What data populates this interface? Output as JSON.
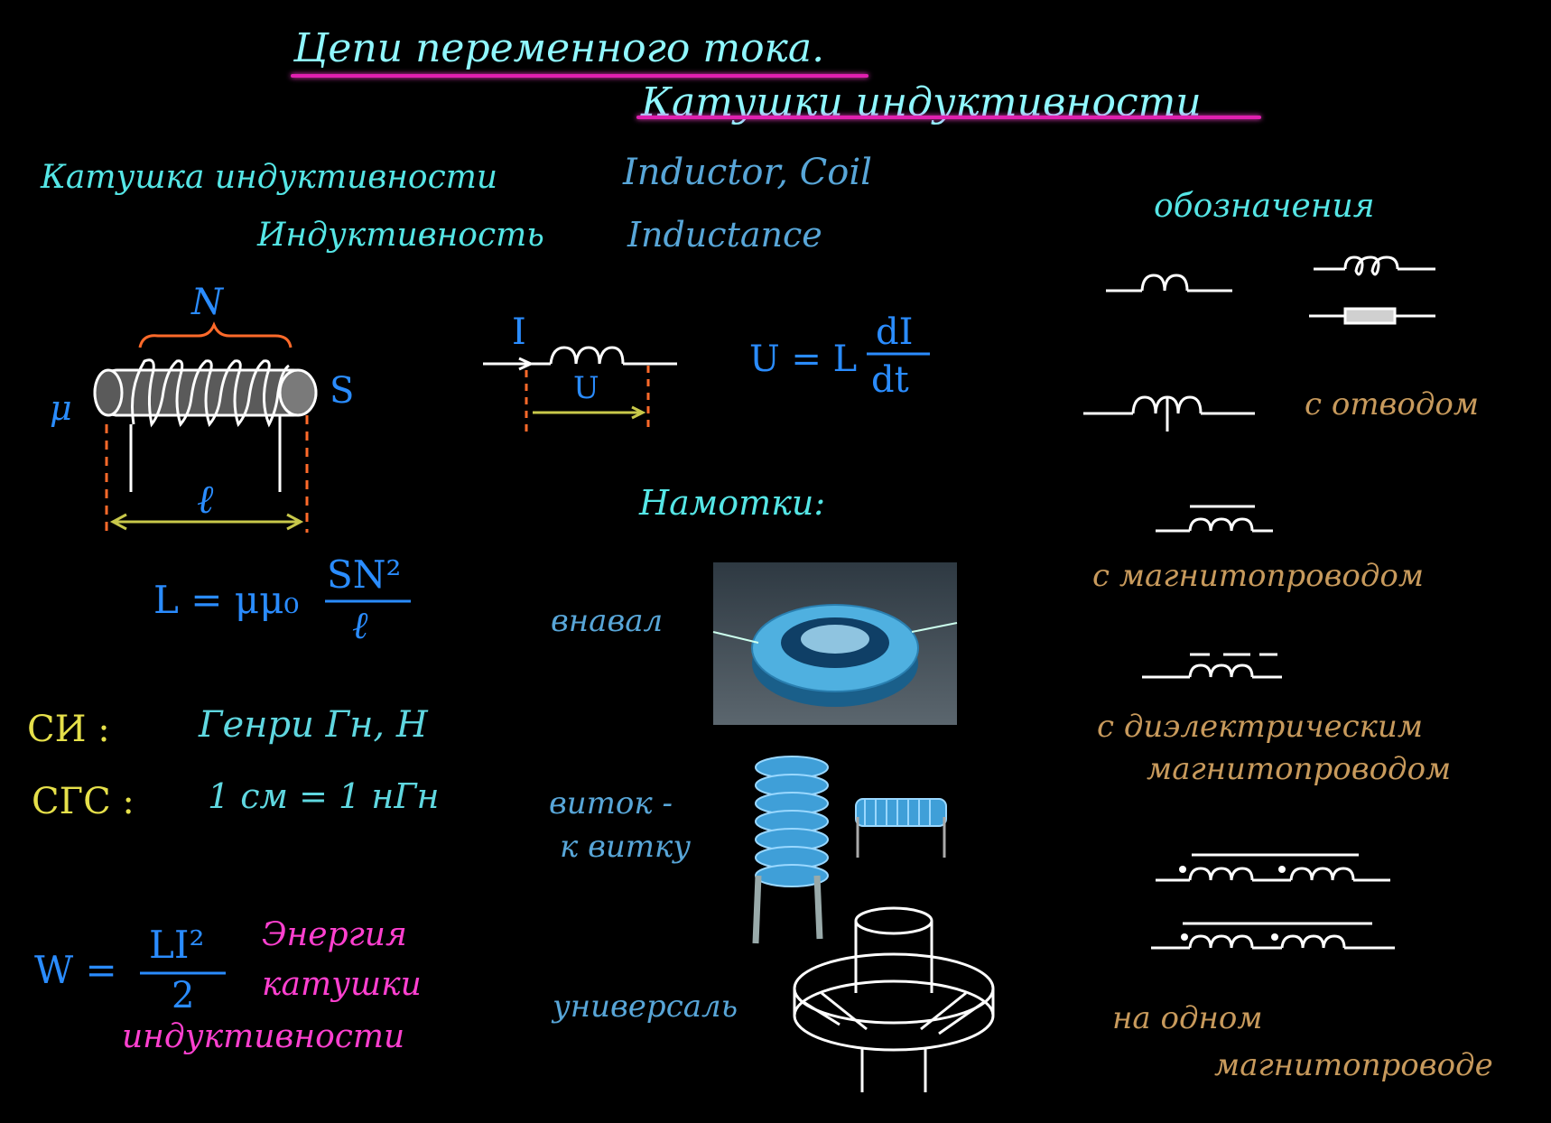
{
  "title": {
    "line1": "Цепи переменного тока.",
    "line2": "Катушки индуктивности"
  },
  "terms": {
    "coil_ru": "Катушка индуктивности",
    "coil_en": "Inductor, Coil",
    "inductance_ru": "Индуктивность",
    "inductance_en": "Inductance"
  },
  "solenoid": {
    "turns_label": "N",
    "mu_label": "μ",
    "area_label": "S",
    "length_label": "ℓ"
  },
  "circuit": {
    "current_label": "I",
    "voltage_label": "U",
    "formula_lhs": "U = L",
    "formula_num": "dI",
    "formula_den": "dt"
  },
  "inductance_formula": {
    "lhs": "L  =  μμ₀",
    "num": "SN²",
    "den": "ℓ"
  },
  "units": {
    "si_label": "СИ :",
    "si_value": "Генри   Гн, H",
    "cgs_label": "СГС :",
    "cgs_value": "1 см  =  1 нГн"
  },
  "energy": {
    "lhs": "W  =",
    "num": "LI²",
    "den": "2",
    "caption_line1": "Энергия",
    "caption_line2": "катушки",
    "caption_line3": "индуктивности"
  },
  "windings": {
    "heading": "Намотки:",
    "type1": "внавал",
    "type2_line1": "виток -",
    "type2_line2": "к витку",
    "type3": "универсаль"
  },
  "symbols": {
    "heading": "обозначения",
    "tap": "с отводом",
    "core": "с магнитопроводом",
    "dielectric_line1": "с диэлектрическим",
    "dielectric_line2": "магнитопроводом",
    "common_line1": "на одном",
    "common_line2": "магнитопроводе"
  }
}
